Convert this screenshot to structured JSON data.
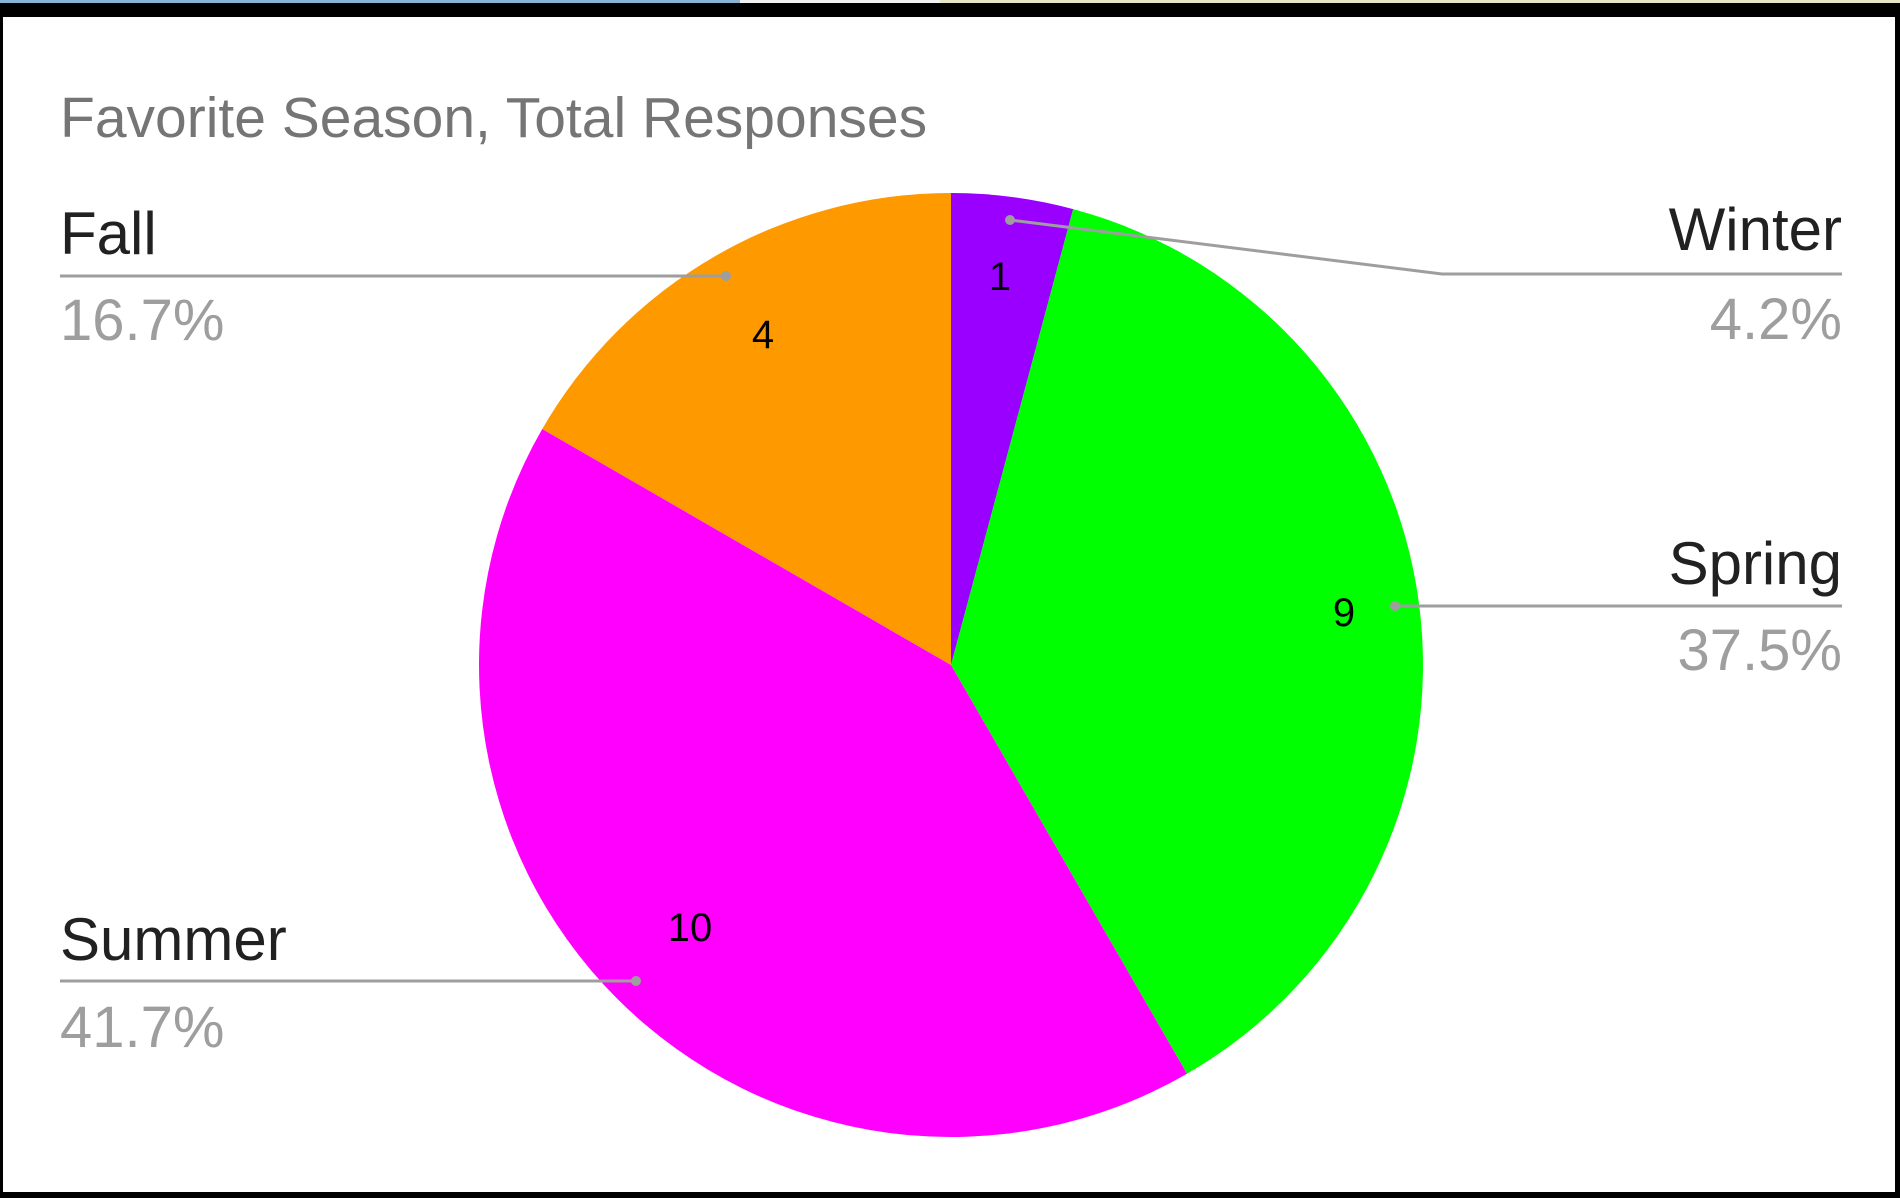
{
  "window": {
    "top_strip_colors": [
      "#8ab4d6",
      "#f2f2f2",
      "#e8e6c8"
    ]
  },
  "chart_data": {
    "type": "pie",
    "title": "Favorite Season, Total Responses",
    "start_angle_deg": 0,
    "direction": "clockwise",
    "slices": [
      {
        "label": "Winter",
        "value": 1,
        "percent_label": "4.2%",
        "value_label": "1",
        "color": "#9900ff"
      },
      {
        "label": "Spring",
        "value": 9,
        "percent_label": "37.5%",
        "value_label": "9",
        "color": "#00ff00"
      },
      {
        "label": "Summer",
        "value": 10,
        "percent_label": "41.7%",
        "value_label": "10",
        "color": "#ff00ff"
      },
      {
        "label": "Fall",
        "value": 4,
        "percent_label": "16.7%",
        "value_label": "4",
        "color": "#ff9900"
      }
    ],
    "colors": {
      "title": "#757575",
      "category_label": "#212121",
      "percent_label": "#9e9e9e",
      "leader_line": "#9e9e9e",
      "value_label": "#000000"
    }
  }
}
